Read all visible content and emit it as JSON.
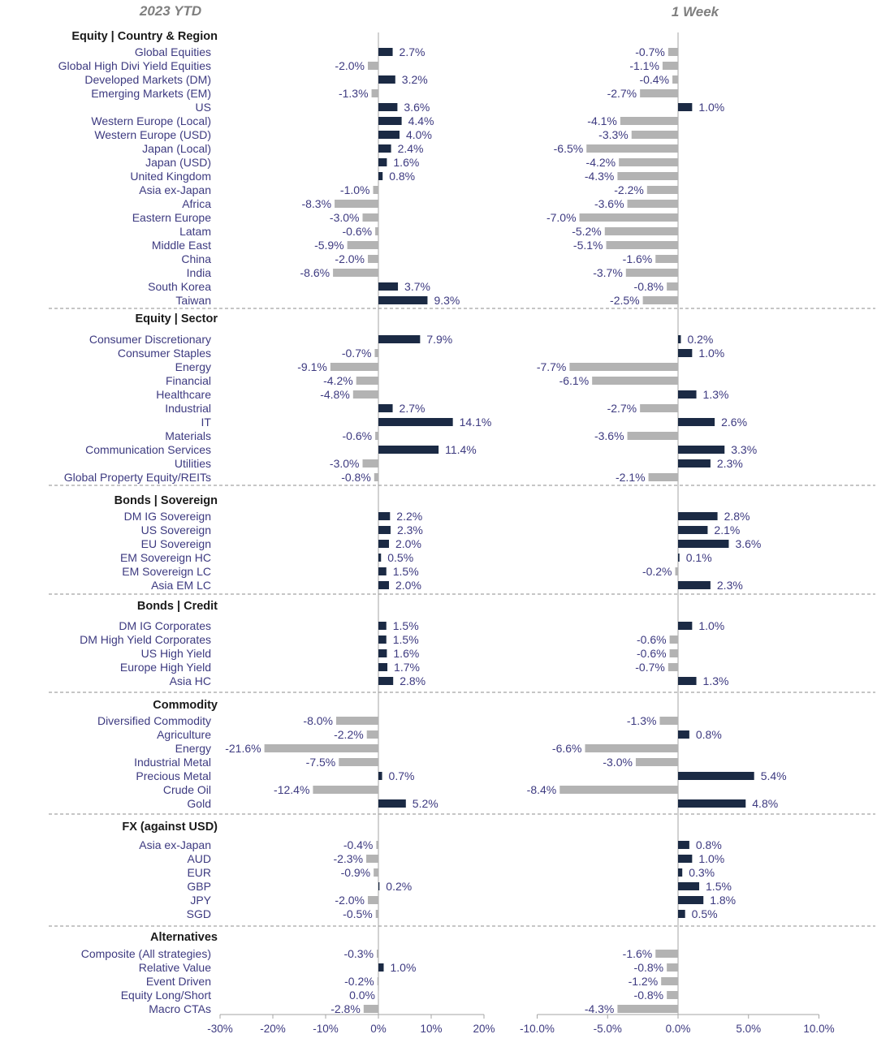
{
  "titles": {
    "left": "2023 YTD",
    "right": "1 Week"
  },
  "colors": {
    "positive": "#1b2a44",
    "negative": "#b3b3b3",
    "text": "#3d3a80",
    "section": "#1a1a1a"
  },
  "chart_data": [
    {
      "type": "bar",
      "orientation": "horizontal",
      "title": "2023 YTD",
      "xlim": [
        -30,
        20
      ],
      "xticks": [
        "-30%",
        "-20%",
        "-10%",
        "0%",
        "10%",
        "20%"
      ],
      "xtick_values": [
        -30,
        -20,
        -10,
        0,
        10,
        20
      ],
      "color_rule": "positive values dark navy, negative values grey"
    },
    {
      "type": "bar",
      "orientation": "horizontal",
      "title": "1 Week",
      "xlim": [
        -10,
        10
      ],
      "xticks": [
        "-10.0%",
        "-5.0%",
        "0.0%",
        "5.0%",
        "10.0%"
      ],
      "xtick_values": [
        -10,
        -5,
        0,
        5,
        10
      ],
      "color_rule": "positive values dark navy, negative values grey"
    }
  ],
  "sections": [
    {
      "title": "Equity | Country & Region",
      "rows": [
        {
          "label": "Global Equities",
          "ytd": 2.7,
          "ytd_label": "2.7%",
          "week": -0.7,
          "week_label": "-0.7%"
        },
        {
          "label": "Global High Divi Yield Equities",
          "ytd": -2.0,
          "ytd_label": "-2.0%",
          "week": -1.1,
          "week_label": "-1.1%"
        },
        {
          "label": "Developed Markets (DM)",
          "ytd": 3.2,
          "ytd_label": "3.2%",
          "week": -0.4,
          "week_label": "-0.4%"
        },
        {
          "label": "Emerging Markets (EM)",
          "ytd": -1.3,
          "ytd_label": "-1.3%",
          "week": -2.7,
          "week_label": "-2.7%"
        },
        {
          "label": "US",
          "ytd": 3.6,
          "ytd_label": "3.6%",
          "week": 1.0,
          "week_label": "1.0%"
        },
        {
          "label": "Western Europe (Local)",
          "ytd": 4.4,
          "ytd_label": "4.4%",
          "week": -4.1,
          "week_label": "-4.1%"
        },
        {
          "label": "Western Europe (USD)",
          "ytd": 4.0,
          "ytd_label": "4.0%",
          "week": -3.3,
          "week_label": "-3.3%"
        },
        {
          "label": "Japan (Local)",
          "ytd": 2.4,
          "ytd_label": "2.4%",
          "week": -6.5,
          "week_label": "-6.5%"
        },
        {
          "label": "Japan (USD)",
          "ytd": 1.6,
          "ytd_label": "1.6%",
          "week": -4.2,
          "week_label": "-4.2%"
        },
        {
          "label": "United Kingdom",
          "ytd": 0.8,
          "ytd_label": "0.8%",
          "week": -4.3,
          "week_label": "-4.3%"
        },
        {
          "label": "Asia ex-Japan",
          "ytd": -1.0,
          "ytd_label": "-1.0%",
          "week": -2.2,
          "week_label": "-2.2%"
        },
        {
          "label": "Africa",
          "ytd": -8.3,
          "ytd_label": "-8.3%",
          "week": -3.6,
          "week_label": "-3.6%"
        },
        {
          "label": "Eastern Europe",
          "ytd": -3.0,
          "ytd_label": "-3.0%",
          "week": -7.0,
          "week_label": "-7.0%"
        },
        {
          "label": "Latam",
          "ytd": -0.6,
          "ytd_label": "-0.6%",
          "week": -5.2,
          "week_label": "-5.2%"
        },
        {
          "label": "Middle East",
          "ytd": -5.9,
          "ytd_label": "-5.9%",
          "week": -5.1,
          "week_label": "-5.1%"
        },
        {
          "label": "China",
          "ytd": -2.0,
          "ytd_label": "-2.0%",
          "week": -1.6,
          "week_label": "-1.6%"
        },
        {
          "label": "India",
          "ytd": -8.6,
          "ytd_label": "-8.6%",
          "week": -3.7,
          "week_label": "-3.7%"
        },
        {
          "label": "South Korea",
          "ytd": 3.7,
          "ytd_label": "3.7%",
          "week": -0.8,
          "week_label": "-0.8%"
        },
        {
          "label": "Taiwan",
          "ytd": 9.3,
          "ytd_label": "9.3%",
          "week": -2.5,
          "week_label": "-2.5%"
        }
      ]
    },
    {
      "title": "Equity | Sector",
      "rows": [
        {
          "label": "Consumer Discretionary",
          "ytd": 7.9,
          "ytd_label": "7.9%",
          "week": 0.2,
          "week_label": "0.2%"
        },
        {
          "label": "Consumer Staples",
          "ytd": -0.7,
          "ytd_label": "-0.7%",
          "week": 1.0,
          "week_label": "1.0%"
        },
        {
          "label": "Energy",
          "ytd": -9.1,
          "ytd_label": "-9.1%",
          "week": -7.7,
          "week_label": "-7.7%"
        },
        {
          "label": "Financial",
          "ytd": -4.2,
          "ytd_label": "-4.2%",
          "week": -6.1,
          "week_label": "-6.1%"
        },
        {
          "label": "Healthcare",
          "ytd": -4.8,
          "ytd_label": "-4.8%",
          "week": 1.3,
          "week_label": "1.3%"
        },
        {
          "label": "Industrial",
          "ytd": 2.7,
          "ytd_label": "2.7%",
          "week": -2.7,
          "week_label": "-2.7%"
        },
        {
          "label": "IT",
          "ytd": 14.1,
          "ytd_label": "14.1%",
          "week": 2.6,
          "week_label": "2.6%"
        },
        {
          "label": "Materials",
          "ytd": -0.6,
          "ytd_label": "-0.6%",
          "week": -3.6,
          "week_label": "-3.6%"
        },
        {
          "label": "Communication Services",
          "ytd": 11.4,
          "ytd_label": "11.4%",
          "week": 3.3,
          "week_label": "3.3%"
        },
        {
          "label": "Utilities",
          "ytd": -3.0,
          "ytd_label": "-3.0%",
          "week": 2.3,
          "week_label": "2.3%"
        },
        {
          "label": "Global Property Equity/REITs",
          "ytd": -0.8,
          "ytd_label": "-0.8%",
          "week": -2.1,
          "week_label": "-2.1%"
        }
      ]
    },
    {
      "title": "Bonds | Sovereign",
      "rows": [
        {
          "label": "DM IG Sovereign",
          "ytd": 2.2,
          "ytd_label": "2.2%",
          "week": 2.8,
          "week_label": "2.8%"
        },
        {
          "label": "US Sovereign",
          "ytd": 2.3,
          "ytd_label": "2.3%",
          "week": 2.1,
          "week_label": "2.1%"
        },
        {
          "label": "EU Sovereign",
          "ytd": 2.0,
          "ytd_label": "2.0%",
          "week": 3.6,
          "week_label": "3.6%"
        },
        {
          "label": "EM Sovereign HC",
          "ytd": 0.5,
          "ytd_label": "0.5%",
          "week": 0.1,
          "week_label": "0.1%"
        },
        {
          "label": "EM Sovereign LC",
          "ytd": 1.5,
          "ytd_label": "1.5%",
          "week": -0.2,
          "week_label": "-0.2%"
        },
        {
          "label": "Asia EM LC",
          "ytd": 2.0,
          "ytd_label": "2.0%",
          "week": 2.3,
          "week_label": "2.3%"
        }
      ]
    },
    {
      "title": "Bonds | Credit",
      "rows": [
        {
          "label": "DM IG Corporates",
          "ytd": 1.5,
          "ytd_label": "1.5%",
          "week": 1.0,
          "week_label": "1.0%"
        },
        {
          "label": "DM High Yield Corporates",
          "ytd": 1.5,
          "ytd_label": "1.5%",
          "week": -0.6,
          "week_label": "-0.6%"
        },
        {
          "label": "US High Yield",
          "ytd": 1.6,
          "ytd_label": "1.6%",
          "week": -0.6,
          "week_label": "-0.6%"
        },
        {
          "label": "Europe High Yield",
          "ytd": 1.7,
          "ytd_label": "1.7%",
          "week": -0.7,
          "week_label": "-0.7%"
        },
        {
          "label": "Asia HC",
          "ytd": 2.8,
          "ytd_label": "2.8%",
          "week": 1.3,
          "week_label": "1.3%"
        }
      ]
    },
    {
      "title": "Commodity",
      "rows": [
        {
          "label": "Diversified Commodity",
          "ytd": -8.0,
          "ytd_label": "-8.0%",
          "week": -1.3,
          "week_label": "-1.3%"
        },
        {
          "label": "Agriculture",
          "ytd": -2.2,
          "ytd_label": "-2.2%",
          "week": 0.8,
          "week_label": "0.8%"
        },
        {
          "label": "Energy",
          "ytd": -21.6,
          "ytd_label": "-21.6%",
          "week": -6.6,
          "week_label": "-6.6%"
        },
        {
          "label": "Industrial Metal",
          "ytd": -7.5,
          "ytd_label": "-7.5%",
          "week": -3.0,
          "week_label": "-3.0%"
        },
        {
          "label": "Precious Metal",
          "ytd": 0.7,
          "ytd_label": "0.7%",
          "week": 5.4,
          "week_label": "5.4%"
        },
        {
          "label": "Crude Oil",
          "ytd": -12.4,
          "ytd_label": "-12.4%",
          "week": -8.4,
          "week_label": "-8.4%"
        },
        {
          "label": "Gold",
          "ytd": 5.2,
          "ytd_label": "5.2%",
          "week": 4.8,
          "week_label": "4.8%"
        }
      ]
    },
    {
      "title": "FX (against USD)",
      "rows": [
        {
          "label": "Asia ex-Japan",
          "ytd": -0.4,
          "ytd_label": "-0.4%",
          "week": 0.8,
          "week_label": "0.8%"
        },
        {
          "label": "AUD",
          "ytd": -2.3,
          "ytd_label": "-2.3%",
          "week": 1.0,
          "week_label": "1.0%"
        },
        {
          "label": "EUR",
          "ytd": -0.9,
          "ytd_label": "-0.9%",
          "week": 0.3,
          "week_label": "0.3%"
        },
        {
          "label": "GBP",
          "ytd": 0.2,
          "ytd_label": "0.2%",
          "week": 1.5,
          "week_label": "1.5%"
        },
        {
          "label": "JPY",
          "ytd": -2.0,
          "ytd_label": "-2.0%",
          "week": 1.8,
          "week_label": "1.8%"
        },
        {
          "label": "SGD",
          "ytd": -0.5,
          "ytd_label": "-0.5%",
          "week": 0.5,
          "week_label": "0.5%"
        }
      ]
    },
    {
      "title": "Alternatives",
      "rows": [
        {
          "label": "Composite (All strategies)",
          "ytd": -0.3,
          "ytd_label": "-0.3%",
          "week": -1.6,
          "week_label": "-1.6%"
        },
        {
          "label": "Relative Value",
          "ytd": 1.0,
          "ytd_label": "1.0%",
          "week": -0.8,
          "week_label": "-0.8%"
        },
        {
          "label": "Event Driven",
          "ytd": -0.2,
          "ytd_label": "-0.2%",
          "week": -1.2,
          "week_label": "-1.2%"
        },
        {
          "label": "Equity Long/Short",
          "ytd": 0.0,
          "ytd_label": "0.0%",
          "week": -0.8,
          "week_label": "-0.8%"
        },
        {
          "label": "Macro CTAs",
          "ytd": -2.8,
          "ytd_label": "-2.8%",
          "week": -4.3,
          "week_label": "-4.3%"
        }
      ]
    }
  ]
}
